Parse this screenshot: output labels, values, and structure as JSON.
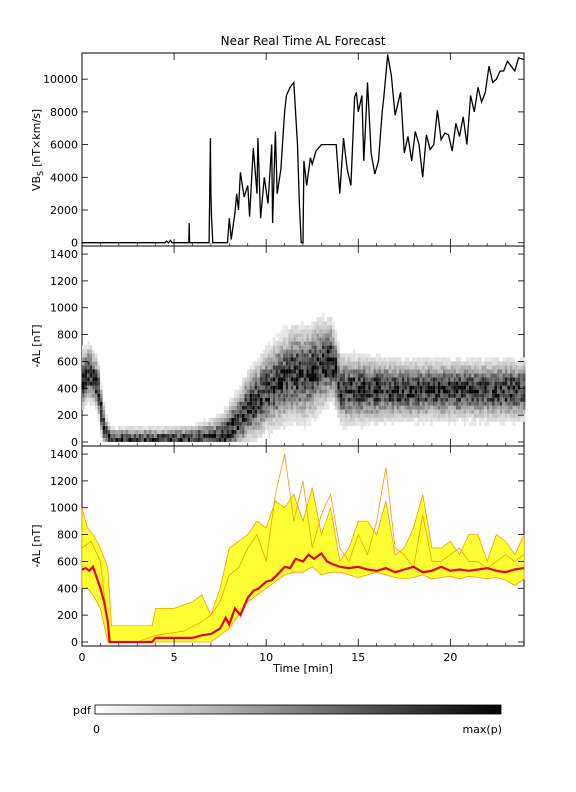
{
  "title": "Near Real Time AL Forecast",
  "colors": {
    "pdf_dark": "#000000",
    "band_fill": "#ffff33",
    "band_edge": "#ff9900",
    "median": "#ee0000"
  },
  "colorbar": {
    "label": "pdf",
    "min_label": "0",
    "max_label": "max(p)"
  },
  "chart_data": [
    {
      "panel": "top",
      "type": "line",
      "ylabel_main": "VB",
      "ylabel_sub": "S",
      "ylabel_unit": "[nT×km/s]",
      "xlim": [
        0,
        24
      ],
      "ylim": [
        -200,
        11600
      ],
      "yticks": [
        0,
        2000,
        4000,
        6000,
        8000,
        10000
      ],
      "series": [
        {
          "x": [
            0,
            4.5,
            4.6,
            4.7,
            4.8,
            4.9,
            5.0,
            5.8,
            5.82,
            5.84,
            6.9,
            6.97,
            7.0,
            7.03,
            7.1,
            7.2,
            7.9,
            8.0,
            8.1,
            8.3,
            8.4,
            8.5,
            8.6,
            8.8,
            9.0,
            9.1,
            9.3,
            9.5,
            9.55,
            9.7,
            9.9,
            10.1,
            10.3,
            10.35,
            10.5,
            10.6,
            10.8,
            11.0,
            11.1,
            11.3,
            11.5,
            11.7,
            11.8,
            11.9,
            12.0,
            12.05,
            12.2,
            12.4,
            12.5,
            12.7,
            13.0,
            13.5,
            13.8,
            14.0,
            14.2,
            14.4,
            14.6,
            14.8,
            14.9,
            15.0,
            15.2,
            15.3,
            15.4,
            15.5,
            15.7,
            15.9,
            16.1,
            16.2,
            16.3,
            16.4,
            16.6,
            16.8,
            17.0,
            17.3,
            17.5,
            17.7,
            17.9,
            18.1,
            18.3,
            18.5,
            18.7,
            18.9,
            19.1,
            19.3,
            19.5,
            19.7,
            19.9,
            20.1,
            20.3,
            20.5,
            20.7,
            20.9,
            21.1,
            21.3,
            21.5,
            21.7,
            21.9,
            22.1,
            22.3,
            22.5,
            22.7,
            22.9,
            23.1,
            23.3,
            23.5,
            23.7,
            24.0
          ],
          "y": [
            0,
            0,
            100,
            0,
            150,
            0,
            0,
            0,
            1200,
            0,
            0,
            6400,
            3000,
            1600,
            0,
            0,
            0,
            1500,
            200,
            1800,
            3000,
            2000,
            4300,
            2800,
            3500,
            1600,
            5800,
            3000,
            6400,
            1500,
            4000,
            2400,
            6000,
            1200,
            6800,
            3000,
            4500,
            8000,
            9000,
            9500,
            9800,
            6000,
            2500,
            0,
            0,
            5000,
            3500,
            5200,
            4800,
            5600,
            6000,
            6000,
            6000,
            3000,
            6400,
            4500,
            3500,
            8900,
            9200,
            8000,
            9000,
            5000,
            7200,
            9800,
            5500,
            4200,
            5000,
            6500,
            8000,
            9000,
            11500,
            10200,
            7800,
            9200,
            5500,
            6500,
            5000,
            6800,
            6000,
            4000,
            6600,
            5700,
            6000,
            8100,
            6300,
            6700,
            6600,
            5600,
            7300,
            6500,
            7700,
            6000,
            9000,
            8000,
            9500,
            8600,
            9200,
            10800,
            9800,
            10000,
            10500,
            10500,
            11100,
            10800,
            10500,
            11300,
            11200
          ]
        }
      ]
    },
    {
      "panel": "middle",
      "type": "heatmap",
      "ylabel": "-AL [nT]",
      "xlim": [
        0,
        24
      ],
      "ylim": [
        -30,
        1460
      ],
      "yticks": [
        0,
        200,
        400,
        600,
        800,
        1000,
        1200,
        1400
      ],
      "peak_curve": {
        "x": [
          0,
          0.3,
          0.5,
          0.8,
          1.0,
          1.2,
          1.5,
          2.0,
          3.0,
          4.0,
          5.0,
          6.0,
          7.0,
          7.5,
          8.0,
          8.5,
          9.0,
          9.5,
          10.0,
          10.5,
          11.0,
          11.5,
          12.0,
          12.5,
          13.0,
          13.5,
          14.0,
          16.0,
          18.0,
          20.0,
          22.0,
          24.0
        ],
        "y": [
          450,
          500,
          480,
          400,
          200,
          50,
          0,
          0,
          0,
          0,
          0,
          0,
          10,
          20,
          80,
          150,
          250,
          300,
          380,
          420,
          460,
          500,
          480,
          520,
          560,
          600,
          380,
          370,
          370,
          370,
          370,
          370
        ]
      },
      "spread_curve": {
        "x": [
          0,
          1.0,
          1.5,
          4.0,
          6.0,
          7.0,
          8.0,
          9.0,
          10.0,
          11.0,
          12.0,
          13.0,
          14.0,
          17.0,
          20.0,
          24.0
        ],
        "y": [
          250,
          200,
          80,
          80,
          100,
          150,
          220,
          300,
          360,
          400,
          420,
          400,
          300,
          250,
          250,
          250
        ]
      }
    },
    {
      "panel": "bottom",
      "type": "area",
      "ylabel": "-AL [nT]",
      "xlabel": "Time [min]",
      "xlim": [
        0,
        24
      ],
      "ylim": [
        -30,
        1460
      ],
      "yticks": [
        0,
        200,
        400,
        600,
        800,
        1000,
        1200,
        1400
      ],
      "xticks": [
        0,
        5,
        10,
        15,
        20
      ],
      "band": {
        "x": [
          0,
          0.3,
          0.6,
          1.0,
          1.4,
          1.6,
          2.0,
          3.0,
          3.8,
          4.0,
          5.0,
          6.0,
          6.5,
          7.0,
          7.5,
          8.0,
          8.5,
          9.0,
          9.5,
          10.0,
          10.5,
          11.0,
          11.5,
          12.0,
          12.5,
          13.0,
          13.5,
          14.0,
          14.5,
          15.0,
          15.5,
          16.0,
          16.5,
          17.0,
          17.5,
          18.0,
          18.5,
          19.0,
          19.5,
          20.0,
          20.5,
          21.0,
          21.5,
          22.0,
          22.5,
          23.0,
          23.5,
          24.0
        ],
        "upper": [
          1000,
          850,
          800,
          700,
          550,
          120,
          120,
          120,
          120,
          250,
          250,
          300,
          350,
          200,
          400,
          700,
          750,
          800,
          900,
          850,
          1050,
          1000,
          1100,
          900,
          1150,
          800,
          1000,
          600,
          700,
          900,
          900,
          800,
          1050,
          650,
          700,
          850,
          1100,
          700,
          700,
          750,
          650,
          800,
          800,
          600,
          800,
          750,
          650,
          800
        ],
        "lower": [
          400,
          400,
          350,
          250,
          0,
          0,
          0,
          0,
          0,
          0,
          0,
          0,
          0,
          0,
          50,
          100,
          200,
          300,
          350,
          400,
          450,
          500,
          520,
          520,
          560,
          500,
          520,
          520,
          500,
          480,
          500,
          520,
          500,
          480,
          470,
          480,
          500,
          470,
          480,
          490,
          470,
          490,
          480,
          470,
          480,
          460,
          420,
          470
        ]
      },
      "pdf_max": {
        "x": [
          0,
          0.5,
          1.0,
          1.5,
          2.5,
          3.0,
          4.0,
          5.5,
          6.5,
          7.0,
          7.5,
          8.0,
          8.5,
          9.0,
          9.5,
          10.0,
          10.5,
          11.0,
          11.5,
          12.0,
          12.5,
          13.0,
          13.5,
          14.0,
          14.5,
          15.0,
          15.5,
          16.0,
          16.5,
          17.0,
          17.5,
          18.0,
          18.5,
          19.0,
          19.5,
          20.0,
          20.5,
          21.0,
          21.5,
          22.0,
          22.5,
          23.0,
          23.5,
          24.0
        ],
        "y": [
          700,
          750,
          600,
          0,
          0,
          0,
          50,
          80,
          150,
          200,
          300,
          500,
          550,
          700,
          800,
          600,
          1100,
          1400,
          900,
          1200,
          700,
          950,
          1100,
          700,
          600,
          800,
          650,
          900,
          1300,
          700,
          650,
          550,
          950,
          600,
          600,
          650,
          700,
          600,
          600,
          550,
          600,
          650,
          600,
          650
        ]
      },
      "median": {
        "x": [
          0,
          0.2,
          0.4,
          0.6,
          0.8,
          1.0,
          1.2,
          1.4,
          1.5,
          1.6,
          3.8,
          4.0,
          5.0,
          6.0,
          6.5,
          7.0,
          7.5,
          7.8,
          8.0,
          8.3,
          8.6,
          9.0,
          9.3,
          9.6,
          10.0,
          10.3,
          10.6,
          11.0,
          11.3,
          11.6,
          12.0,
          12.3,
          12.6,
          13.0,
          13.3,
          13.6,
          14.0,
          14.5,
          15.0,
          15.5,
          16.0,
          16.5,
          17.0,
          17.5,
          18.0,
          18.5,
          19.0,
          19.5,
          20.0,
          20.5,
          21.0,
          21.5,
          22.0,
          22.5,
          23.0,
          23.5,
          24.0
        ],
        "y": [
          540,
          550,
          530,
          560,
          480,
          400,
          300,
          150,
          0,
          0,
          0,
          30,
          30,
          30,
          50,
          60,
          100,
          180,
          130,
          250,
          200,
          330,
          380,
          400,
          450,
          460,
          500,
          560,
          550,
          620,
          600,
          650,
          620,
          660,
          600,
          580,
          560,
          550,
          560,
          540,
          530,
          550,
          520,
          540,
          560,
          520,
          530,
          560,
          530,
          540,
          530,
          540,
          550,
          530,
          520,
          540,
          550
        ]
      }
    }
  ]
}
